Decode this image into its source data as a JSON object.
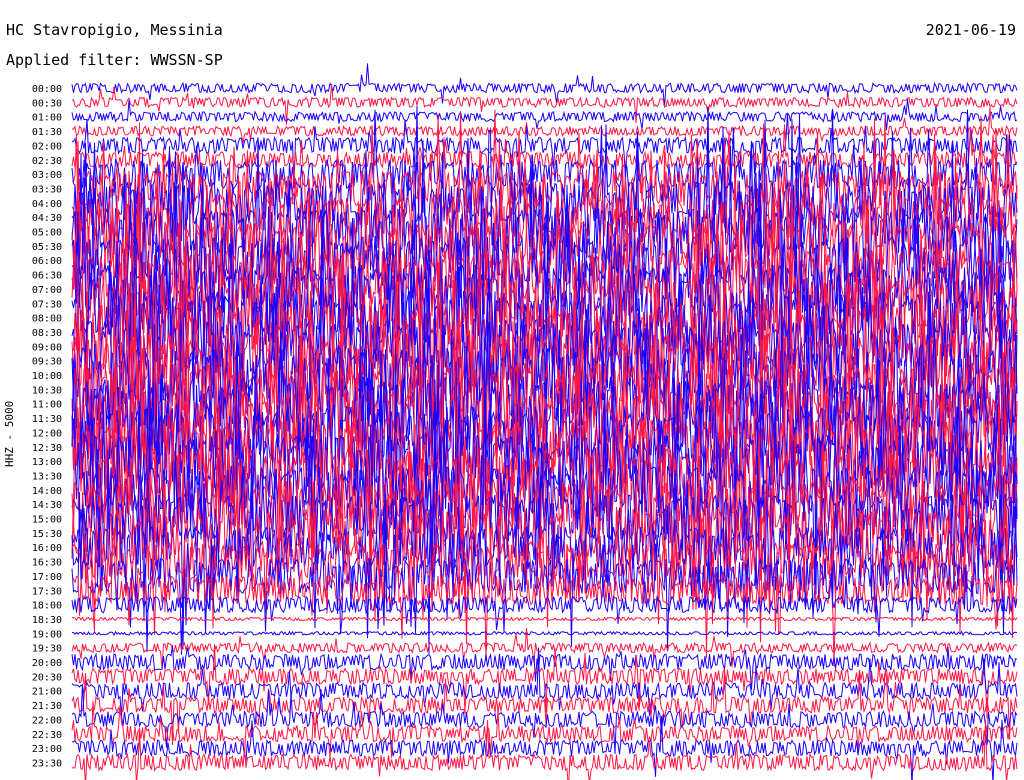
{
  "header": {
    "station": "HC Stavropigio, Messinia",
    "filter": "Applied filter: WWSSN-SP",
    "date": "2021-06-19"
  },
  "channel_label": "HHZ - 5000",
  "colors": {
    "trace_a": "#1a00ff",
    "trace_b": "#ff1744",
    "text": "#000000",
    "background": "#ffffff"
  },
  "chart_data": {
    "type": "line",
    "title": "HC Stavropigio, Messinia",
    "subtitle": "Applied filter: WWSSN-SP",
    "ylabel": "HHZ - 5000",
    "row_labels": [
      "00:00",
      "00:30",
      "01:00",
      "01:30",
      "02:00",
      "02:30",
      "03:00",
      "03:30",
      "04:00",
      "04:30",
      "05:00",
      "05:30",
      "06:00",
      "06:30",
      "07:00",
      "07:30",
      "08:00",
      "08:30",
      "09:00",
      "09:30",
      "10:00",
      "10:30",
      "11:00",
      "11:30",
      "12:00",
      "12:30",
      "13:00",
      "13:30",
      "14:00",
      "14:30",
      "15:00",
      "15:30",
      "16:00",
      "16:30",
      "17:00",
      "17:30",
      "18:00",
      "18:30",
      "19:00",
      "19:30",
      "20:00",
      "20:30",
      "21:00",
      "21:30",
      "22:00",
      "22:30",
      "23:00",
      "23:30"
    ],
    "row_noise_level": [
      1,
      1,
      1,
      1,
      2,
      2,
      4,
      5,
      6,
      6,
      7,
      7,
      7,
      7,
      7,
      8,
      8,
      8,
      8,
      8,
      8,
      8,
      8,
      8,
      8,
      8,
      8,
      8,
      7,
      7,
      7,
      7,
      6,
      5,
      5,
      4,
      2,
      0,
      0,
      1,
      2,
      2,
      2,
      2,
      2,
      2,
      2,
      2
    ],
    "series": [
      {
        "color": "trace_a",
        "rows": "even"
      },
      {
        "color": "trace_b",
        "rows": "odd"
      }
    ],
    "grid": false,
    "legend": "none"
  }
}
